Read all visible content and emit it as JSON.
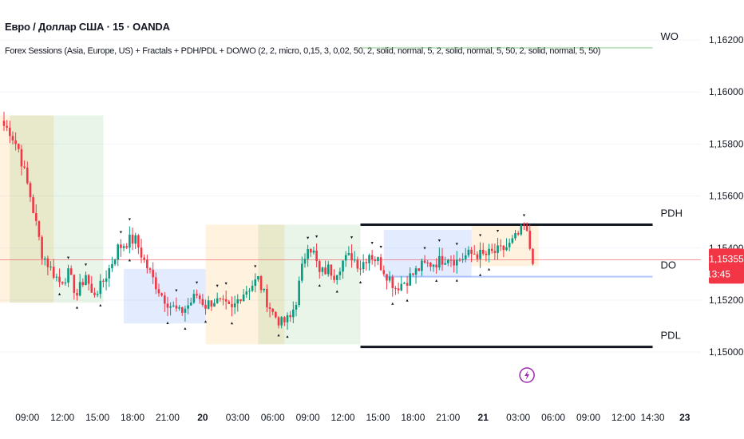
{
  "header": {
    "title": "Евро / Доллар США · 15 · OANDA",
    "study": "Forex Sessions (Asia, Europe, US) + Fractals + PDH/PDL + DO/WO (2, 2, micro, 0,15, 3, 0,02, 50, 2, solid, normal, 5, 2, solid, normal, 5, 50, 2, solid, normal, 5, 50)"
  },
  "colors": {
    "up": "#089981",
    "down": "#f23645",
    "asia": "#2962ff",
    "europe": "#ff9800",
    "us": "#4caf50",
    "levels": "#131722",
    "price_line": "#f23645"
  },
  "chart_data": {
    "type": "candlestick",
    "y_axis": {
      "min": 1.1485,
      "max": 1.1628,
      "ticks": [
        "1,16200",
        "1,16000",
        "1,15800",
        "1,15600",
        "1,15400",
        "1,15200",
        "1,15000"
      ],
      "tick_values": [
        1.162,
        1.16,
        1.158,
        1.156,
        1.154,
        1.152,
        1.15
      ]
    },
    "x_axis": {
      "ticks": [
        {
          "label": "09:00",
          "bar": 8
        },
        {
          "label": "12:00",
          "bar": 20
        },
        {
          "label": "15:00",
          "bar": 32
        },
        {
          "label": "18:00",
          "bar": 44
        },
        {
          "label": "21:00",
          "bar": 56
        },
        {
          "label": "20",
          "bar": 68,
          "bold": true
        },
        {
          "label": "03:00",
          "bar": 80
        },
        {
          "label": "06:00",
          "bar": 92
        },
        {
          "label": "09:00",
          "bar": 104
        },
        {
          "label": "12:00",
          "bar": 116
        },
        {
          "label": "15:00",
          "bar": 128
        },
        {
          "label": "18:00",
          "bar": 140
        },
        {
          "label": "21:00",
          "bar": 152
        },
        {
          "label": "21",
          "bar": 164,
          "bold": true
        },
        {
          "label": "03:00",
          "bar": 176
        },
        {
          "label": "06:00",
          "bar": 188
        },
        {
          "label": "09:00",
          "bar": 200
        },
        {
          "label": "12:00",
          "bar": 212
        },
        {
          "label": "14:30",
          "bar": 222
        },
        {
          "label": "23",
          "bar": 233,
          "bold": true
        }
      ]
    },
    "close_path": [
      [
        0,
        1.1587
      ],
      [
        2,
        1.1585
      ],
      [
        5,
        1.1578
      ],
      [
        9,
        1.156
      ],
      [
        13,
        1.1538
      ],
      [
        16,
        1.1532
      ],
      [
        19,
        1.1527
      ],
      [
        22,
        1.153
      ],
      [
        25,
        1.1522
      ],
      [
        28,
        1.153
      ],
      [
        30,
        1.1522
      ],
      [
        33,
        1.1525
      ],
      [
        36,
        1.1532
      ],
      [
        39,
        1.154
      ],
      [
        43,
        1.1543
      ],
      [
        45,
        1.1543
      ],
      [
        48,
        1.1535
      ],
      [
        51,
        1.1528
      ],
      [
        54,
        1.1522
      ],
      [
        57,
        1.1518
      ],
      [
        60,
        1.1515
      ],
      [
        63,
        1.1518
      ],
      [
        66,
        1.1522
      ],
      [
        69,
        1.1518
      ],
      [
        72,
        1.152
      ],
      [
        75,
        1.1518
      ],
      [
        78,
        1.1516
      ],
      [
        81,
        1.1522
      ],
      [
        84,
        1.1525
      ],
      [
        87,
        1.1528
      ],
      [
        89,
        1.1522
      ],
      [
        92,
        1.1515
      ],
      [
        95,
        1.1511
      ],
      [
        98,
        1.1513
      ],
      [
        100,
        1.152
      ],
      [
        102,
        1.1532
      ],
      [
        104,
        1.1542
      ],
      [
        106,
        1.1538
      ],
      [
        108,
        1.153
      ],
      [
        111,
        1.1532
      ],
      [
        113,
        1.153
      ],
      [
        116,
        1.1535
      ],
      [
        119,
        1.1537
      ],
      [
        122,
        1.1533
      ],
      [
        125,
        1.1538
      ],
      [
        128,
        1.1535
      ],
      [
        131,
        1.153
      ],
      [
        134,
        1.1525
      ],
      [
        137,
        1.1527
      ],
      [
        140,
        1.153
      ],
      [
        143,
        1.1533
      ],
      [
        146,
        1.1534
      ],
      [
        149,
        1.1535
      ],
      [
        152,
        1.1537
      ],
      [
        155,
        1.1535
      ],
      [
        158,
        1.1537
      ],
      [
        161,
        1.1538
      ],
      [
        164,
        1.1537
      ],
      [
        167,
        1.1538
      ],
      [
        170,
        1.1539
      ],
      [
        173,
        1.1541
      ],
      [
        176,
        1.1545
      ],
      [
        178,
        1.1548
      ],
      [
        179,
        1.1545
      ],
      [
        180,
        1.154
      ],
      [
        181,
        1.1536
      ]
    ],
    "sessions": [
      {
        "name": "Europe",
        "from_bar": -3,
        "to_bar": 2,
        "high": 1.1591,
        "low": 1.1519
      },
      {
        "name": "Europe",
        "from_bar": 2,
        "to_bar": 17,
        "high": 1.1591,
        "low": 1.1519
      },
      {
        "name": "US",
        "from_bar": 2,
        "to_bar": 34,
        "high": 1.1591,
        "low": 1.1519
      },
      {
        "name": "Asia",
        "from_bar": 41,
        "to_bar": 69,
        "high": 1.1532,
        "low": 1.1511
      },
      {
        "name": "Europe",
        "from_bar": 69,
        "to_bar": 96,
        "high": 1.1549,
        "low": 1.1503
      },
      {
        "name": "US",
        "from_bar": 87,
        "to_bar": 122,
        "high": 1.1549,
        "low": 1.1503
      },
      {
        "name": "Asia",
        "from_bar": 130,
        "to_bar": 160,
        "high": 1.1547,
        "low": 1.1529
      },
      {
        "name": "Europe",
        "from_bar": 160,
        "to_bar": 183,
        "high": 1.1549,
        "low": 1.1533
      }
    ],
    "levels": [
      {
        "name": "WO",
        "value": 1.1617,
        "from_bar": 122,
        "to_bar": 222,
        "color": "#4caf50"
      },
      {
        "name": "PDH",
        "value": 1.1549,
        "from_bar": 122,
        "to_bar": 222,
        "color": "#131722"
      },
      {
        "name": "DO",
        "value": 1.1529,
        "from_bar": 130,
        "to_bar": 222,
        "color": "#2962ff"
      },
      {
        "name": "PDL",
        "value": 1.1502,
        "from_bar": 122,
        "to_bar": 222,
        "color": "#131722"
      }
    ],
    "current_price": {
      "value": 1.15355,
      "label": "1,15355",
      "countdown": "13:45"
    }
  }
}
